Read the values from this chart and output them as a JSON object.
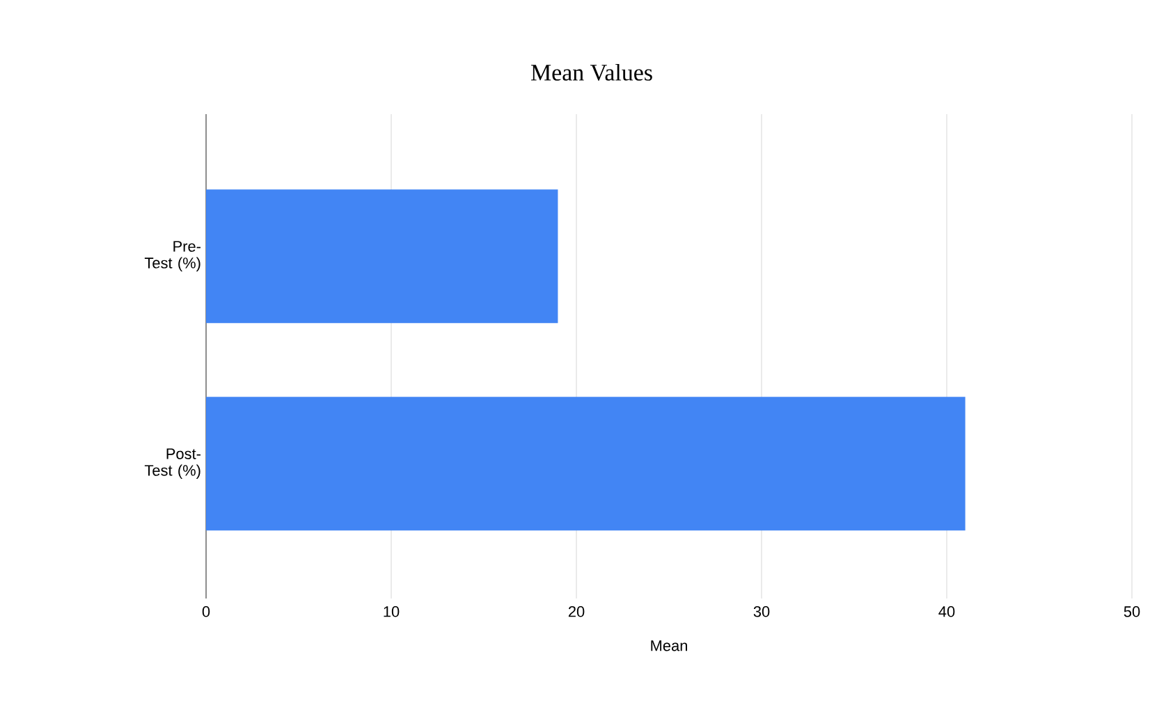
{
  "chart_data": {
    "type": "bar",
    "orientation": "horizontal",
    "title": "Mean Values",
    "xlabel": "Mean",
    "categories": [
      "Pre-Test (%)",
      "Post-Test (%)"
    ],
    "values": [
      19,
      41
    ],
    "color": "#4285f4",
    "xlim": [
      0,
      50
    ],
    "xticks": [
      0,
      10,
      20,
      30,
      40,
      50
    ],
    "grid": "x"
  }
}
